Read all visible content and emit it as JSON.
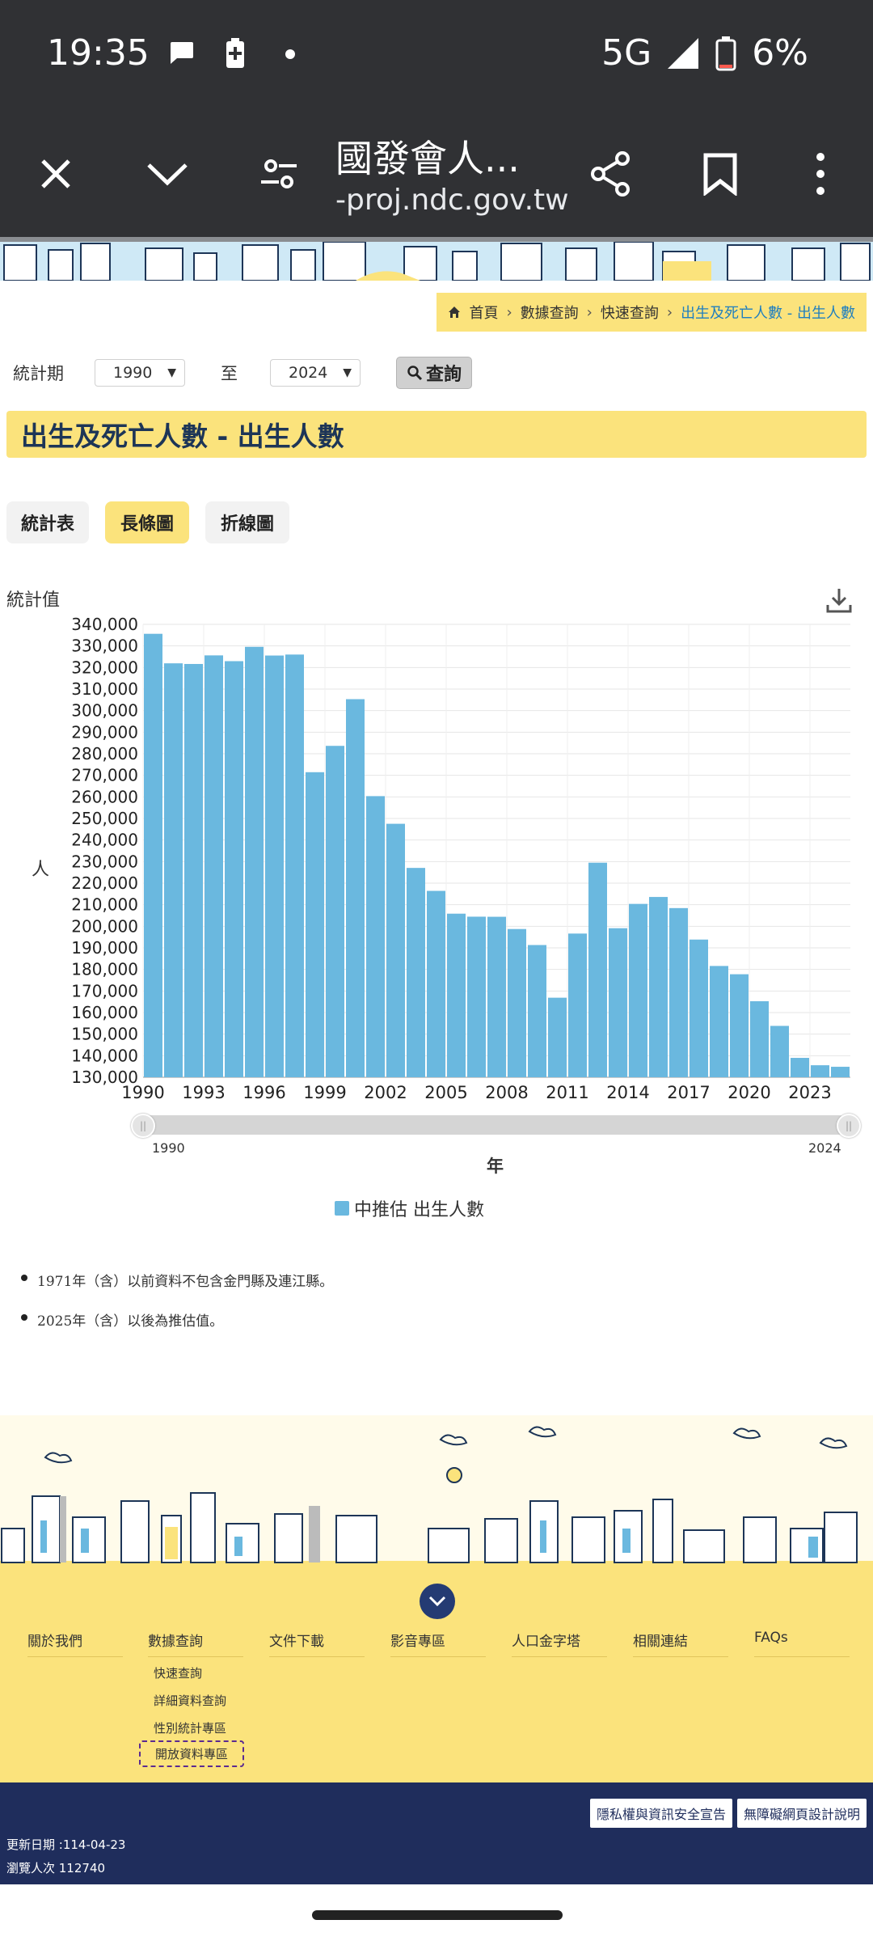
{
  "status_bar": {
    "time": "19:35",
    "network": "5G",
    "battery": "6%"
  },
  "browser": {
    "title": "國發會人...",
    "url": "-proj.ndc.gov.tw"
  },
  "breadcrumb": {
    "home": "首頁",
    "item1": "數據查詢",
    "item2": "快速查詢",
    "current": "出生及死亡人數 - 出生人數"
  },
  "query": {
    "label": "統計期",
    "from": "1990",
    "to_label": "至",
    "to": "2024",
    "button": "查詢"
  },
  "page_title": "出生及死亡人數 - 出生人數",
  "tabs": {
    "table": "統計表",
    "bar": "長條圖",
    "line": "折線圖"
  },
  "chart_labels": {
    "value_label": "統計值",
    "unit_label": "人",
    "x_label": "年",
    "slider_min": "1990",
    "slider_max": "2024"
  },
  "chart_data": {
    "type": "bar",
    "xlabel": "年",
    "ylabel": "人",
    "ylim": [
      130000,
      340000
    ],
    "yticks": [
      130000,
      140000,
      150000,
      160000,
      170000,
      180000,
      190000,
      200000,
      210000,
      220000,
      230000,
      240000,
      250000,
      260000,
      270000,
      280000,
      290000,
      300000,
      310000,
      320000,
      330000,
      340000
    ],
    "xticks": [
      "1990",
      "1993",
      "1996",
      "1999",
      "2002",
      "2005",
      "2008",
      "2011",
      "2014",
      "2017",
      "2020",
      "2023"
    ],
    "categories": [
      "1990",
      "1991",
      "1992",
      "1993",
      "1994",
      "1995",
      "1996",
      "1997",
      "1998",
      "1999",
      "2000",
      "2001",
      "2002",
      "2003",
      "2004",
      "2005",
      "2006",
      "2007",
      "2008",
      "2009",
      "2010",
      "2011",
      "2012",
      "2013",
      "2014",
      "2015",
      "2016",
      "2017",
      "2018",
      "2019",
      "2020",
      "2021",
      "2022",
      "2023",
      "2024"
    ],
    "series": [
      {
        "name": "中推估 出生人數",
        "color": "#6ab8df",
        "values": [
          335618,
          321932,
          321632,
          325613,
          322938,
          329581,
          325545,
          326002,
          271450,
          283661,
          305312,
          260354,
          247530,
          227070,
          216419,
          205854,
          204459,
          204414,
          198733,
          191310,
          166886,
          196627,
          229481,
          199113,
          210383,
          213598,
          208440,
          193844,
          181601,
          177767,
          165249,
          153820,
          138986,
          135571,
          134856
        ]
      }
    ],
    "legend": "bottom-center",
    "grid": true
  },
  "notes": [
    "1971年（含）以前資料不包含金門縣及連江縣。",
    "2025年（含）以後為推估值。"
  ],
  "footer_menu": {
    "about": "關於我們",
    "data": "數據查詢",
    "download": "文件下載",
    "media": "影音專區",
    "pyramid": "人口金字塔",
    "links": "相關連結",
    "faqs": "FAQs",
    "sub": [
      "快速查詢",
      "詳細資料查詢",
      "性別統計專區",
      "開放資料專區"
    ]
  },
  "footer_bottom": {
    "privacy": "隱私權與資訊安全宣告",
    "accessibility": "無障礙網頁設計說明",
    "updated": "更新日期 :114-04-23",
    "visits": "瀏覽人次 112740"
  },
  "icons": [
    "close-icon",
    "chevron-down-icon",
    "settings-tune-icon",
    "share-icon",
    "bookmark-icon",
    "more-vert-icon",
    "home-icon",
    "search-icon",
    "download-icon",
    "chevron-circle-down-icon",
    "chat-bubble-icon",
    "battery-icon",
    "signal-icon"
  ]
}
